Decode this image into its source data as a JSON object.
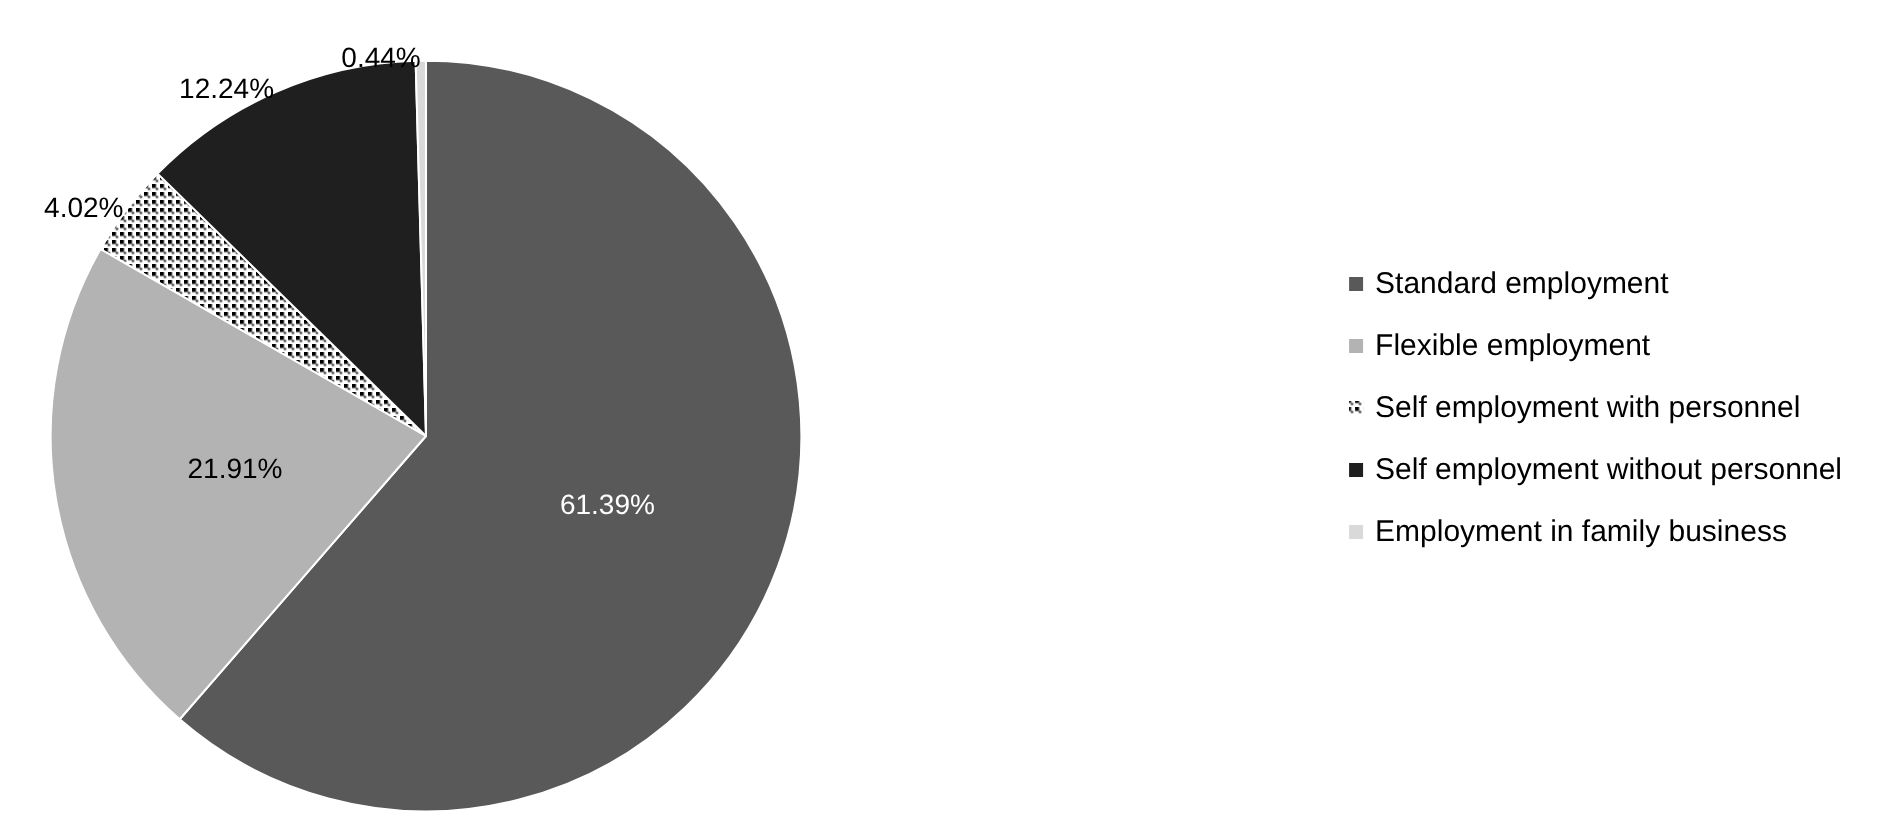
{
  "chart_data": {
    "type": "pie",
    "categories": [
      "Standard employment",
      "Flexible employment",
      "Self employment with personnel",
      "Self employment without personnel",
      "Employment in family business"
    ],
    "values": [
      61.39,
      21.91,
      4.02,
      12.24,
      0.44
    ],
    "colors": [
      "#595959",
      "#b3b3b3",
      "#ffffff",
      "#1f1f1f",
      "#d9d9d9"
    ],
    "value_labels": [
      "61.39%",
      "21.91%",
      "4.02%",
      "12.24%",
      "0.44%"
    ],
    "legend": "right"
  }
}
